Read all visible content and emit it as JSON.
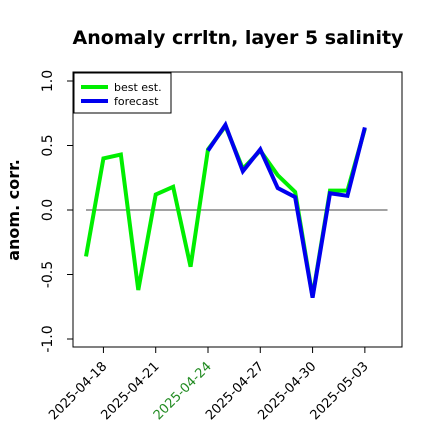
{
  "chart_data": {
    "type": "line",
    "title": "Anomaly crrltn, layer 5 salinity",
    "xlabel": "",
    "ylabel": "anom. corr.",
    "ylim": [
      -1.0,
      1.0
    ],
    "yticks": [
      "-1.0",
      "-0.5",
      "0.0",
      "0.5",
      "1.0"
    ],
    "xlim": [
      0,
      17.5
    ],
    "xticks": [
      {
        "label": "2025-04-18",
        "x": 1,
        "color": "#000000"
      },
      {
        "label": "2025-04-21",
        "x": 4,
        "color": "#000000"
      },
      {
        "label": "2025-04-24",
        "x": 7,
        "color": "#228B22"
      },
      {
        "label": "2025-04-27",
        "x": 10,
        "color": "#000000"
      },
      {
        "label": "2025-04-30",
        "x": 13,
        "color": "#000000"
      },
      {
        "label": "2025-05-03",
        "x": 16,
        "color": "#000000"
      }
    ],
    "reference_line": 0.0,
    "legend_position": "top-left",
    "series": [
      {
        "name": "best est.",
        "color": "#00ee00",
        "x": [
          0,
          1,
          2,
          3,
          4,
          5,
          6,
          7,
          8,
          9,
          10,
          11,
          12,
          13,
          14,
          15,
          16
        ],
        "values": [
          -0.36,
          0.4,
          0.43,
          -0.62,
          0.12,
          0.18,
          -0.44,
          0.47,
          0.65,
          0.32,
          0.46,
          0.27,
          0.14,
          -0.67,
          0.15,
          0.15,
          0.63
        ]
      },
      {
        "name": "forecast",
        "color": "#0000ee",
        "x": [
          7,
          8,
          9,
          10,
          11,
          12,
          13,
          14,
          15,
          16
        ],
        "values": [
          0.46,
          0.66,
          0.3,
          0.47,
          0.17,
          0.1,
          -0.68,
          0.13,
          0.11,
          0.64
        ]
      }
    ]
  }
}
